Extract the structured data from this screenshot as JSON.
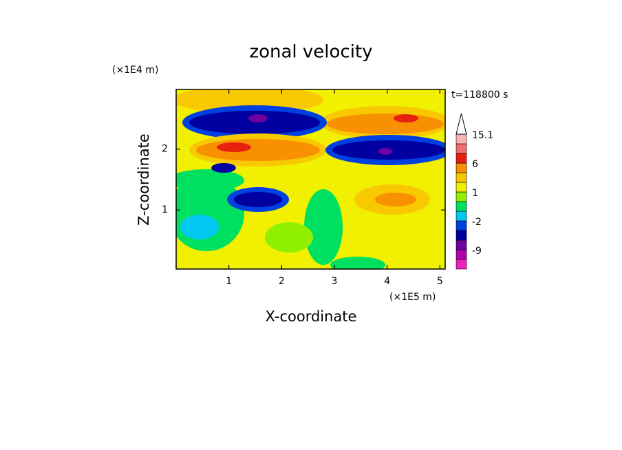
{
  "chart_data": {
    "type": "contour",
    "title": "zonal velocity",
    "annotation": "t=118800 s",
    "x_label": "X-coordinate",
    "y_label": "Z-coordinate",
    "x_unit": "(×1E5 m)",
    "y_unit": "(×1E4 m)",
    "xlim": [
      0,
      5.1
    ],
    "xticks": [
      1,
      2,
      3,
      4,
      5
    ],
    "ylim": [
      0.03,
      2.98
    ],
    "yticks": [
      1,
      2
    ],
    "colorbar": {
      "levels": [
        -15,
        -12,
        -9,
        -6,
        -3,
        -2,
        -1,
        0,
        1,
        2,
        3,
        6,
        9,
        12,
        15.1
      ],
      "colors": [
        "#f020c0",
        "#b000b0",
        "#7000a0",
        "#0000a0",
        "#0040e0",
        "#00c8f0",
        "#00e060",
        "#90f000",
        "#f0f000",
        "#f8c800",
        "#f89000",
        "#e82010",
        "#f07070",
        "#f8b4b4"
      ],
      "ticks": [
        15.1,
        6,
        1,
        -2,
        -9
      ],
      "extend": "max"
    }
  }
}
